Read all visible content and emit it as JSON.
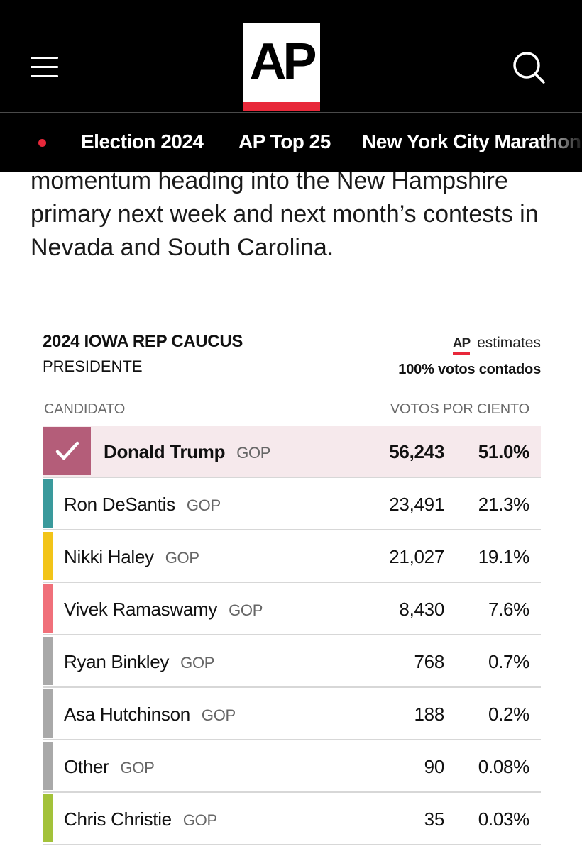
{
  "header": {
    "logo_text": "AP",
    "colors": {
      "background": "#000000",
      "accent": "#e8283a"
    }
  },
  "nav": {
    "items": [
      {
        "label": "Election 2024"
      },
      {
        "label": "AP Top 25"
      },
      {
        "label": "New York City Marathon"
      }
    ]
  },
  "article": {
    "lines": [
      "momentum heading into the New Hampshire",
      "primary next week and next month’s contests in",
      "Nevada and South Carolina."
    ]
  },
  "results": {
    "title": "2024 IOWA REP CAUCUS",
    "office": "PRESIDENTE",
    "estimates_logo": "AP",
    "estimates_label": "estimates",
    "reporting": "100% votos contados",
    "headers": {
      "candidate": "CANDIDATO",
      "votes_pct": "VOTOS POR CIENTO"
    },
    "candidates": [
      {
        "name": "Donald Trump",
        "party": "GOP",
        "votes": "56,243",
        "pct": "51.0%",
        "winner": true,
        "color": "#b45d79"
      },
      {
        "name": "Ron DeSantis",
        "party": "GOP",
        "votes": "23,491",
        "pct": "21.3%",
        "color": "#3a9a9c"
      },
      {
        "name": "Nikki Haley",
        "party": "GOP",
        "votes": "21,027",
        "pct": "19.1%",
        "color": "#f2c418"
      },
      {
        "name": "Vivek Ramaswamy",
        "party": "GOP",
        "votes": "8,430",
        "pct": "7.6%",
        "color": "#f0707a"
      },
      {
        "name": "Ryan Binkley",
        "party": "GOP",
        "votes": "768",
        "pct": "0.7%",
        "color": "#a9a9a9"
      },
      {
        "name": "Asa Hutchinson",
        "party": "GOP",
        "votes": "188",
        "pct": "0.2%",
        "color": "#a9a9a9"
      },
      {
        "name": "Other",
        "party": "GOP",
        "votes": "90",
        "pct": "0.08%",
        "color": "#a9a9a9"
      },
      {
        "name": "Chris Christie",
        "party": "GOP",
        "votes": "35",
        "pct": "0.03%",
        "color": "#a3c23a"
      }
    ]
  }
}
